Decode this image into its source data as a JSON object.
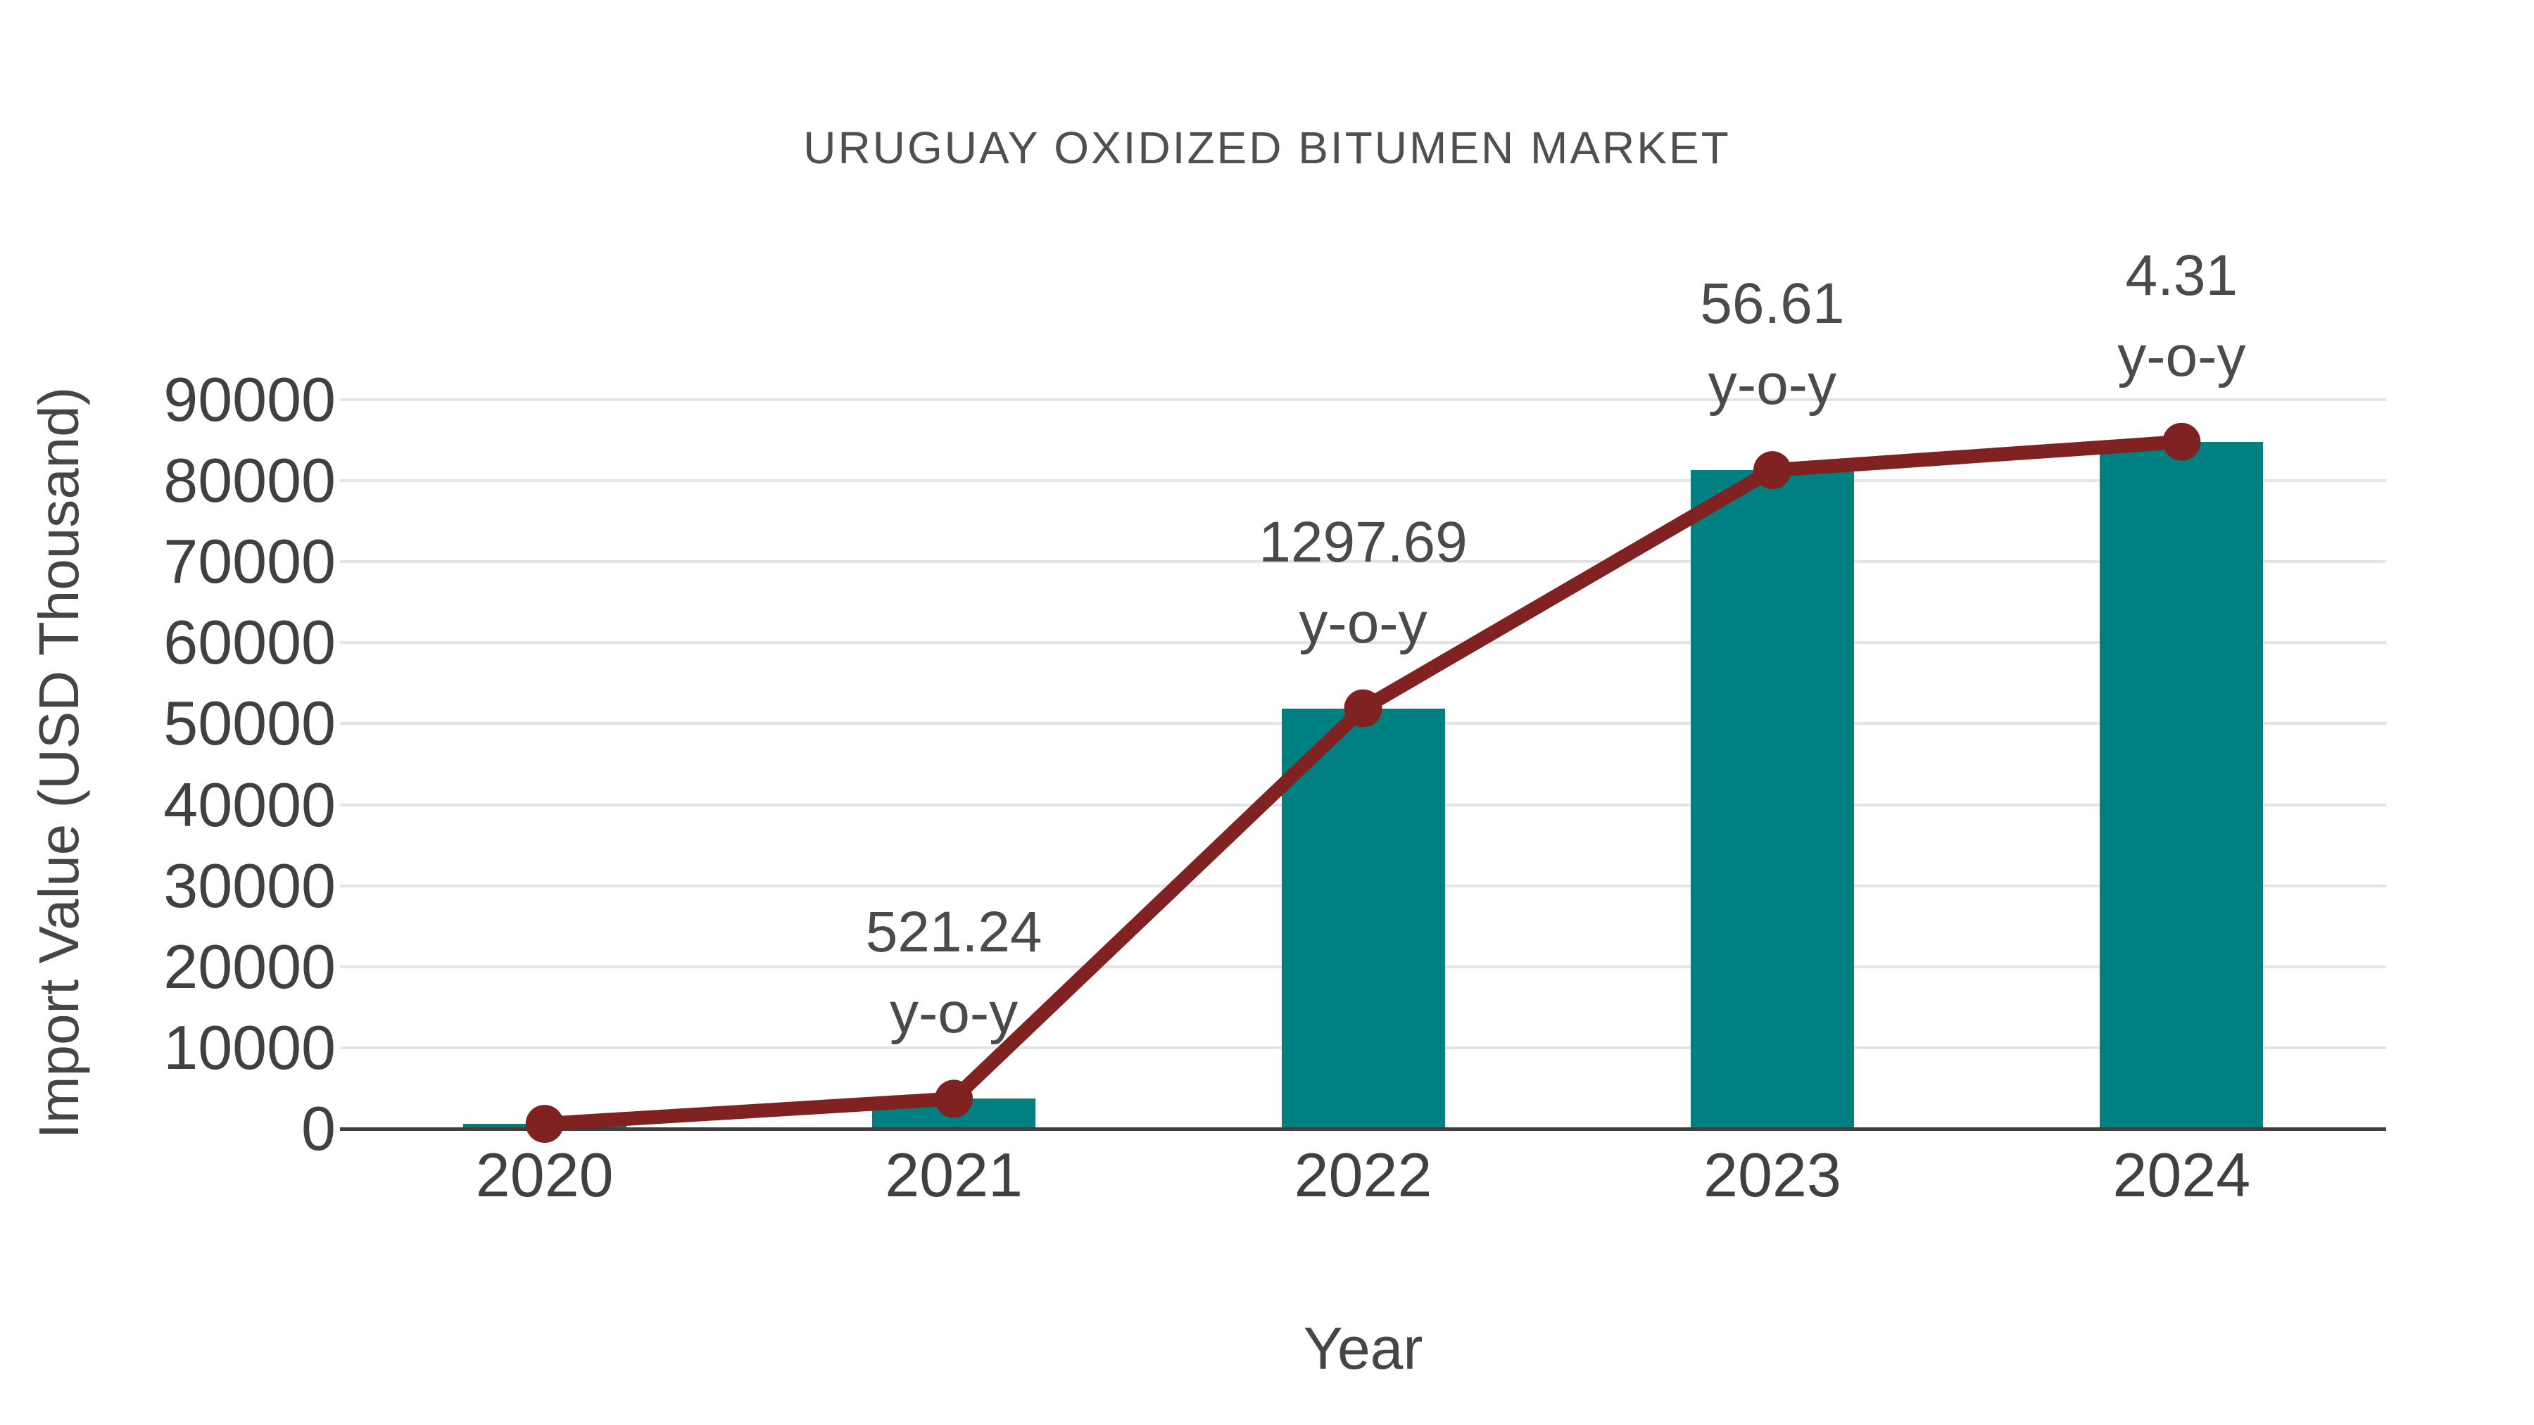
{
  "title": "URUGUAY OXIDIZED BITUMEN MARKET",
  "colors": {
    "bar": "#008080",
    "line": "#812222",
    "marker": "#812222",
    "grid": "#e4e4e4",
    "axis": "#3f3f3f",
    "text": "#454545"
  },
  "chart_data": {
    "type": "bar",
    "title": "URUGUAY OXIDIZED BITUMEN MARKET",
    "xlabel": "Year",
    "ylabel": "Import Value (USD Thousand)",
    "categories": [
      "2020",
      "2021",
      "2022",
      "2023",
      "2024"
    ],
    "series": [
      {
        "name": "Import Value",
        "kind": "bar",
        "color": "#008080",
        "values": [
          600,
          3700,
          51900,
          81300,
          84800
        ]
      },
      {
        "name": "Import Value trend",
        "kind": "line",
        "color": "#812222",
        "values": [
          600,
          3700,
          51900,
          81300,
          84800
        ]
      }
    ],
    "annotations": [
      {
        "category": "2021",
        "value_label": "521.24",
        "suffix_label": "y-o-y",
        "yoy_percent": 521.24
      },
      {
        "category": "2022",
        "value_label": "1297.69",
        "suffix_label": "y-o-y",
        "yoy_percent": 1297.69
      },
      {
        "category": "2023",
        "value_label": "56.61",
        "suffix_label": "y-o-y",
        "yoy_percent": 56.61
      },
      {
        "category": "2024",
        "value_label": "4.31",
        "suffix_label": "y-o-y",
        "yoy_percent": 4.31
      }
    ],
    "ylim": [
      0,
      90000
    ],
    "yticks": [
      0,
      10000,
      20000,
      30000,
      40000,
      50000,
      60000,
      70000,
      80000,
      90000
    ],
    "grid": "horizontal",
    "legend": "none"
  }
}
